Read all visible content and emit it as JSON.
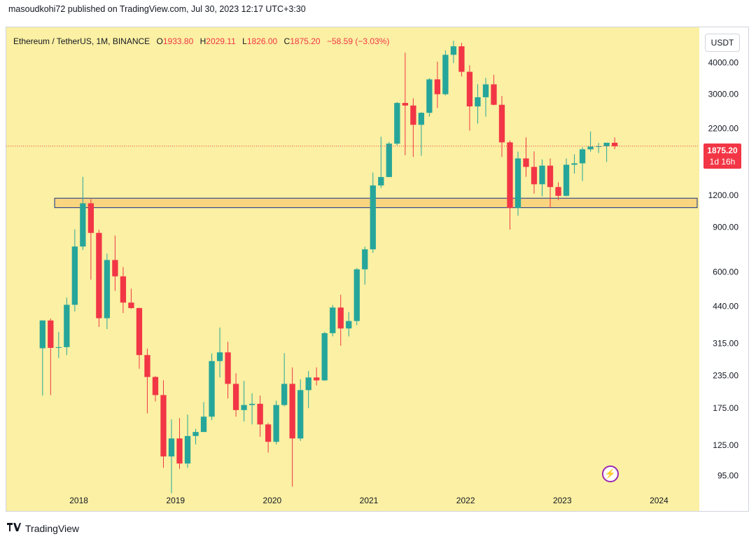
{
  "header": {
    "publisher": "masoudkohi72 published on TradingView.com, Jul 30, 2023 12:17 UTC+3:30"
  },
  "legend": {
    "symbol": "Ethereum / TetherUS, 1M, BINANCE",
    "o_label": "O",
    "o_value": "1933.80",
    "h_label": "H",
    "h_value": "2029.11",
    "l_label": "L",
    "l_value": "1826.00",
    "c_label": "C",
    "c_value": "1875.20",
    "change": "−58.59 (−3.03%)"
  },
  "currency_button": "USDT",
  "last_price_label": {
    "price": "1875.20",
    "countdown": "1d 16h"
  },
  "footer": {
    "brand": "TradingView"
  },
  "colors": {
    "background": "#fbf0a3",
    "up": "#26a69a",
    "down": "#f23645",
    "zone_fill": "#f8d57e",
    "zone_border": "#3a4a8a"
  },
  "chart_data": {
    "type": "candlestick",
    "y_scale": "log",
    "ylim": [
      85,
      5500
    ],
    "y_ticks": [
      "4000.00",
      "3000.00",
      "2200.00",
      "1200.00",
      "900.00",
      "600.00",
      "440.00",
      "315.00",
      "235.00",
      "175.00",
      "125.00",
      "95.00"
    ],
    "x_ticks": [
      "2018",
      "2019",
      "2020",
      "2021",
      "2022",
      "2023",
      "2024"
    ],
    "xlim": [
      "2017-04",
      "2024-06"
    ],
    "candles": [
      {
        "t": "2017-08",
        "o": 301,
        "h": 388,
        "l": 196,
        "c": 387
      },
      {
        "t": "2017-09",
        "o": 387,
        "h": 394,
        "l": 197,
        "c": 302
      },
      {
        "t": "2017-10",
        "o": 302,
        "h": 349,
        "l": 275,
        "c": 304
      },
      {
        "t": "2017-11",
        "o": 304,
        "h": 476,
        "l": 283,
        "c": 446
      },
      {
        "t": "2017-12",
        "o": 446,
        "h": 883,
        "l": 420,
        "c": 756
      },
      {
        "t": "2018-01",
        "o": 756,
        "h": 1420,
        "l": 732,
        "c": 1118
      },
      {
        "t": "2018-02",
        "o": 1118,
        "h": 1161,
        "l": 560,
        "c": 855
      },
      {
        "t": "2018-03",
        "o": 855,
        "h": 880,
        "l": 365,
        "c": 395
      },
      {
        "t": "2018-04",
        "o": 395,
        "h": 709,
        "l": 358,
        "c": 669
      },
      {
        "t": "2018-05",
        "o": 669,
        "h": 835,
        "l": 506,
        "c": 577
      },
      {
        "t": "2018-06",
        "o": 577,
        "h": 628,
        "l": 414,
        "c": 455
      },
      {
        "t": "2018-07",
        "o": 455,
        "h": 516,
        "l": 430,
        "c": 433
      },
      {
        "t": "2018-08",
        "o": 433,
        "h": 435,
        "l": 250,
        "c": 283
      },
      {
        "t": "2018-09",
        "o": 283,
        "h": 300,
        "l": 167,
        "c": 232
      },
      {
        "t": "2018-10",
        "o": 232,
        "h": 234,
        "l": 186,
        "c": 197
      },
      {
        "t": "2018-11",
        "o": 197,
        "h": 225,
        "l": 102,
        "c": 113
      },
      {
        "t": "2018-12",
        "o": 113,
        "h": 158,
        "l": 81,
        "c": 133
      },
      {
        "t": "2019-01",
        "o": 133,
        "h": 160,
        "l": 101,
        "c": 106
      },
      {
        "t": "2019-02",
        "o": 106,
        "h": 165,
        "l": 102,
        "c": 136
      },
      {
        "t": "2019-03",
        "o": 136,
        "h": 145,
        "l": 126,
        "c": 141
      },
      {
        "t": "2019-04",
        "o": 141,
        "h": 185,
        "l": 149,
        "c": 162
      },
      {
        "t": "2019-05",
        "o": 162,
        "h": 287,
        "l": 157,
        "c": 268
      },
      {
        "t": "2019-06",
        "o": 268,
        "h": 363,
        "l": 231,
        "c": 290
      },
      {
        "t": "2019-07",
        "o": 290,
        "h": 319,
        "l": 191,
        "c": 218
      },
      {
        "t": "2019-08",
        "o": 218,
        "h": 240,
        "l": 162,
        "c": 172
      },
      {
        "t": "2019-09",
        "o": 172,
        "h": 224,
        "l": 155,
        "c": 180
      },
      {
        "t": "2019-10",
        "o": 180,
        "h": 200,
        "l": 151,
        "c": 182
      },
      {
        "t": "2019-11",
        "o": 182,
        "h": 196,
        "l": 135,
        "c": 151
      },
      {
        "t": "2019-12",
        "o": 151,
        "h": 153,
        "l": 117,
        "c": 129
      },
      {
        "t": "2020-01",
        "o": 129,
        "h": 187,
        "l": 126,
        "c": 180
      },
      {
        "t": "2020-02",
        "o": 180,
        "h": 288,
        "l": 178,
        "c": 218
      },
      {
        "t": "2020-03",
        "o": 218,
        "h": 253,
        "l": 86,
        "c": 133
      },
      {
        "t": "2020-04",
        "o": 133,
        "h": 227,
        "l": 130,
        "c": 206
      },
      {
        "t": "2020-05",
        "o": 206,
        "h": 245,
        "l": 175,
        "c": 231
      },
      {
        "t": "2020-06",
        "o": 231,
        "h": 253,
        "l": 215,
        "c": 225
      },
      {
        "t": "2020-07",
        "o": 225,
        "h": 349,
        "l": 224,
        "c": 345
      },
      {
        "t": "2020-08",
        "o": 345,
        "h": 445,
        "l": 335,
        "c": 435
      },
      {
        "t": "2020-09",
        "o": 435,
        "h": 488,
        "l": 308,
        "c": 360
      },
      {
        "t": "2020-10",
        "o": 360,
        "h": 417,
        "l": 335,
        "c": 385
      },
      {
        "t": "2020-11",
        "o": 385,
        "h": 622,
        "l": 371,
        "c": 615
      },
      {
        "t": "2020-12",
        "o": 615,
        "h": 755,
        "l": 535,
        "c": 737
      },
      {
        "t": "2021-01",
        "o": 737,
        "h": 1476,
        "l": 714,
        "c": 1314
      },
      {
        "t": "2021-02",
        "o": 1314,
        "h": 2041,
        "l": 1284,
        "c": 1418
      },
      {
        "t": "2021-03",
        "o": 1418,
        "h": 1947,
        "l": 1420,
        "c": 1918
      },
      {
        "t": "2021-04",
        "o": 1918,
        "h": 2799,
        "l": 1889,
        "c": 2773
      },
      {
        "t": "2021-05",
        "o": 2773,
        "h": 4372,
        "l": 1728,
        "c": 2709
      },
      {
        "t": "2021-06",
        "o": 2709,
        "h": 2891,
        "l": 1700,
        "c": 2275
      },
      {
        "t": "2021-07",
        "o": 2275,
        "h": 2550,
        "l": 1719,
        "c": 2536
      },
      {
        "t": "2021-08",
        "o": 2536,
        "h": 3470,
        "l": 2451,
        "c": 3433
      },
      {
        "t": "2021-09",
        "o": 3433,
        "h": 4027,
        "l": 2651,
        "c": 3001
      },
      {
        "t": "2021-10",
        "o": 3001,
        "h": 4460,
        "l": 2970,
        "c": 4288
      },
      {
        "t": "2021-11",
        "o": 4288,
        "h": 4868,
        "l": 3976,
        "c": 4631
      },
      {
        "t": "2021-12",
        "o": 4631,
        "h": 4778,
        "l": 3524,
        "c": 3676
      },
      {
        "t": "2022-01",
        "o": 3676,
        "h": 3900,
        "l": 2159,
        "c": 2688
      },
      {
        "t": "2022-02",
        "o": 2688,
        "h": 3285,
        "l": 2300,
        "c": 2920
      },
      {
        "t": "2022-03",
        "o": 2920,
        "h": 3479,
        "l": 2450,
        "c": 3281
      },
      {
        "t": "2022-04",
        "o": 3281,
        "h": 3580,
        "l": 2712,
        "c": 2727
      },
      {
        "t": "2022-05",
        "o": 2727,
        "h": 2955,
        "l": 1700,
        "c": 1941
      },
      {
        "t": "2022-06",
        "o": 1941,
        "h": 1974,
        "l": 881,
        "c": 1072
      },
      {
        "t": "2022-07",
        "o": 1072,
        "h": 1785,
        "l": 1000,
        "c": 1678
      },
      {
        "t": "2022-08",
        "o": 1678,
        "h": 2030,
        "l": 1422,
        "c": 1554
      },
      {
        "t": "2022-09",
        "o": 1554,
        "h": 1788,
        "l": 1220,
        "c": 1328
      },
      {
        "t": "2022-10",
        "o": 1328,
        "h": 1663,
        "l": 1190,
        "c": 1572
      },
      {
        "t": "2022-11",
        "o": 1572,
        "h": 1677,
        "l": 1073,
        "c": 1295
      },
      {
        "t": "2022-12",
        "o": 1295,
        "h": 1352,
        "l": 1150,
        "c": 1196
      },
      {
        "t": "2023-01",
        "o": 1196,
        "h": 1678,
        "l": 1190,
        "c": 1585
      },
      {
        "t": "2023-02",
        "o": 1585,
        "h": 1743,
        "l": 1461,
        "c": 1605
      },
      {
        "t": "2023-03",
        "o": 1605,
        "h": 1857,
        "l": 1368,
        "c": 1822
      },
      {
        "t": "2023-04",
        "o": 1822,
        "h": 2141,
        "l": 1784,
        "c": 1869
      },
      {
        "t": "2023-05",
        "o": 1869,
        "h": 1930,
        "l": 1762,
        "c": 1874
      },
      {
        "t": "2023-06",
        "o": 1874,
        "h": 1929,
        "l": 1626,
        "c": 1934
      },
      {
        "t": "2023-07",
        "o": 1934,
        "h": 2029,
        "l": 1826,
        "c": 1875
      }
    ],
    "zone": {
      "from": 1075,
      "to": 1170,
      "start": "2017-10",
      "end": "2024-06"
    },
    "last_price": 1875.2
  }
}
